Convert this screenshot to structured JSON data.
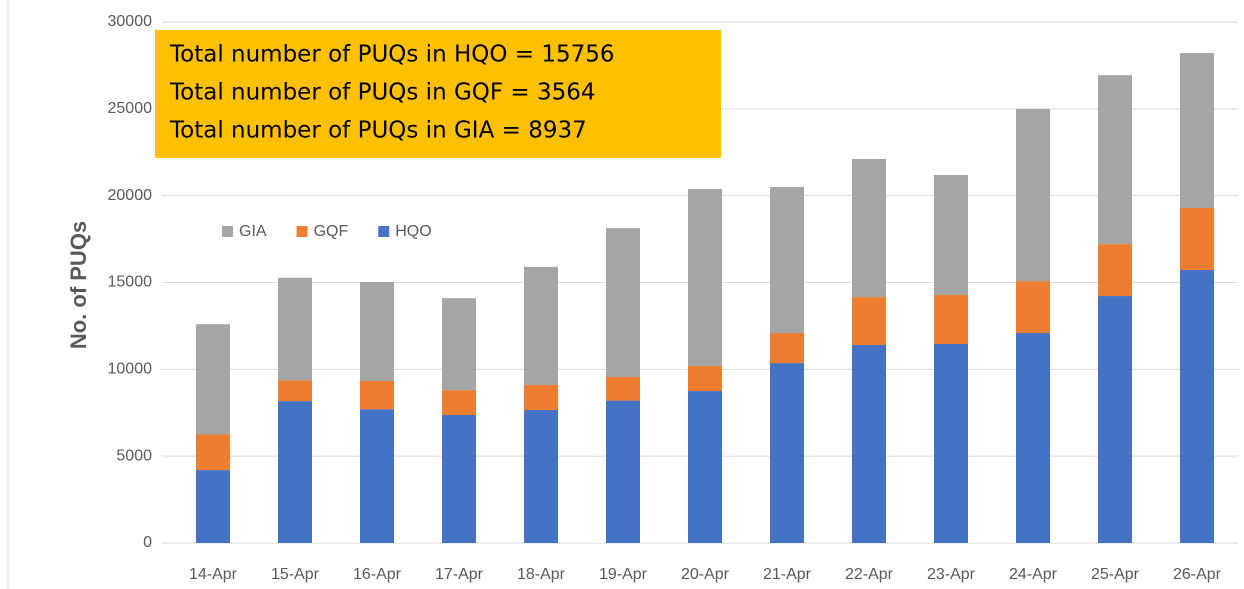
{
  "chart_data": {
    "type": "stacked_bar",
    "ylabel": "No. of PUQs",
    "categories": [
      "14-Apr",
      "15-Apr",
      "16-Apr",
      "17-Apr",
      "18-Apr",
      "19-Apr",
      "20-Apr",
      "21-Apr",
      "22-Apr",
      "23-Apr",
      "24-Apr",
      "25-Apr",
      "26-Apr"
    ],
    "series": [
      {
        "name": "HQO",
        "color": "#4472c4",
        "values": [
          4200,
          8170,
          7700,
          7370,
          7660,
          8200,
          8750,
          10360,
          11400,
          11460,
          12090,
          14220,
          15720
        ]
      },
      {
        "name": "GQF",
        "color": "#ed7d31",
        "values": [
          2050,
          1200,
          1630,
          1430,
          1440,
          1360,
          1440,
          1730,
          2760,
          2820,
          2990,
          2990,
          3570
        ]
      },
      {
        "name": "GIA",
        "color": "#a5a5a5",
        "values": [
          6350,
          5900,
          5700,
          5300,
          6800,
          8570,
          10190,
          8410,
          7950,
          6910,
          9910,
          9730,
          8920
        ]
      }
    ],
    "ylim": [
      0,
      30000
    ],
    "yticks": [
      0,
      5000,
      10000,
      15000,
      20000,
      25000,
      30000
    ],
    "grid": true,
    "legend": "upper left",
    "annotation": [
      "Total number of PUQs in HQO =   15756",
      "Total number of PUQs in GQF =  3564",
      "Total number of PUQs in GIA =   8937"
    ],
    "annotation_color": "#ffc000"
  }
}
